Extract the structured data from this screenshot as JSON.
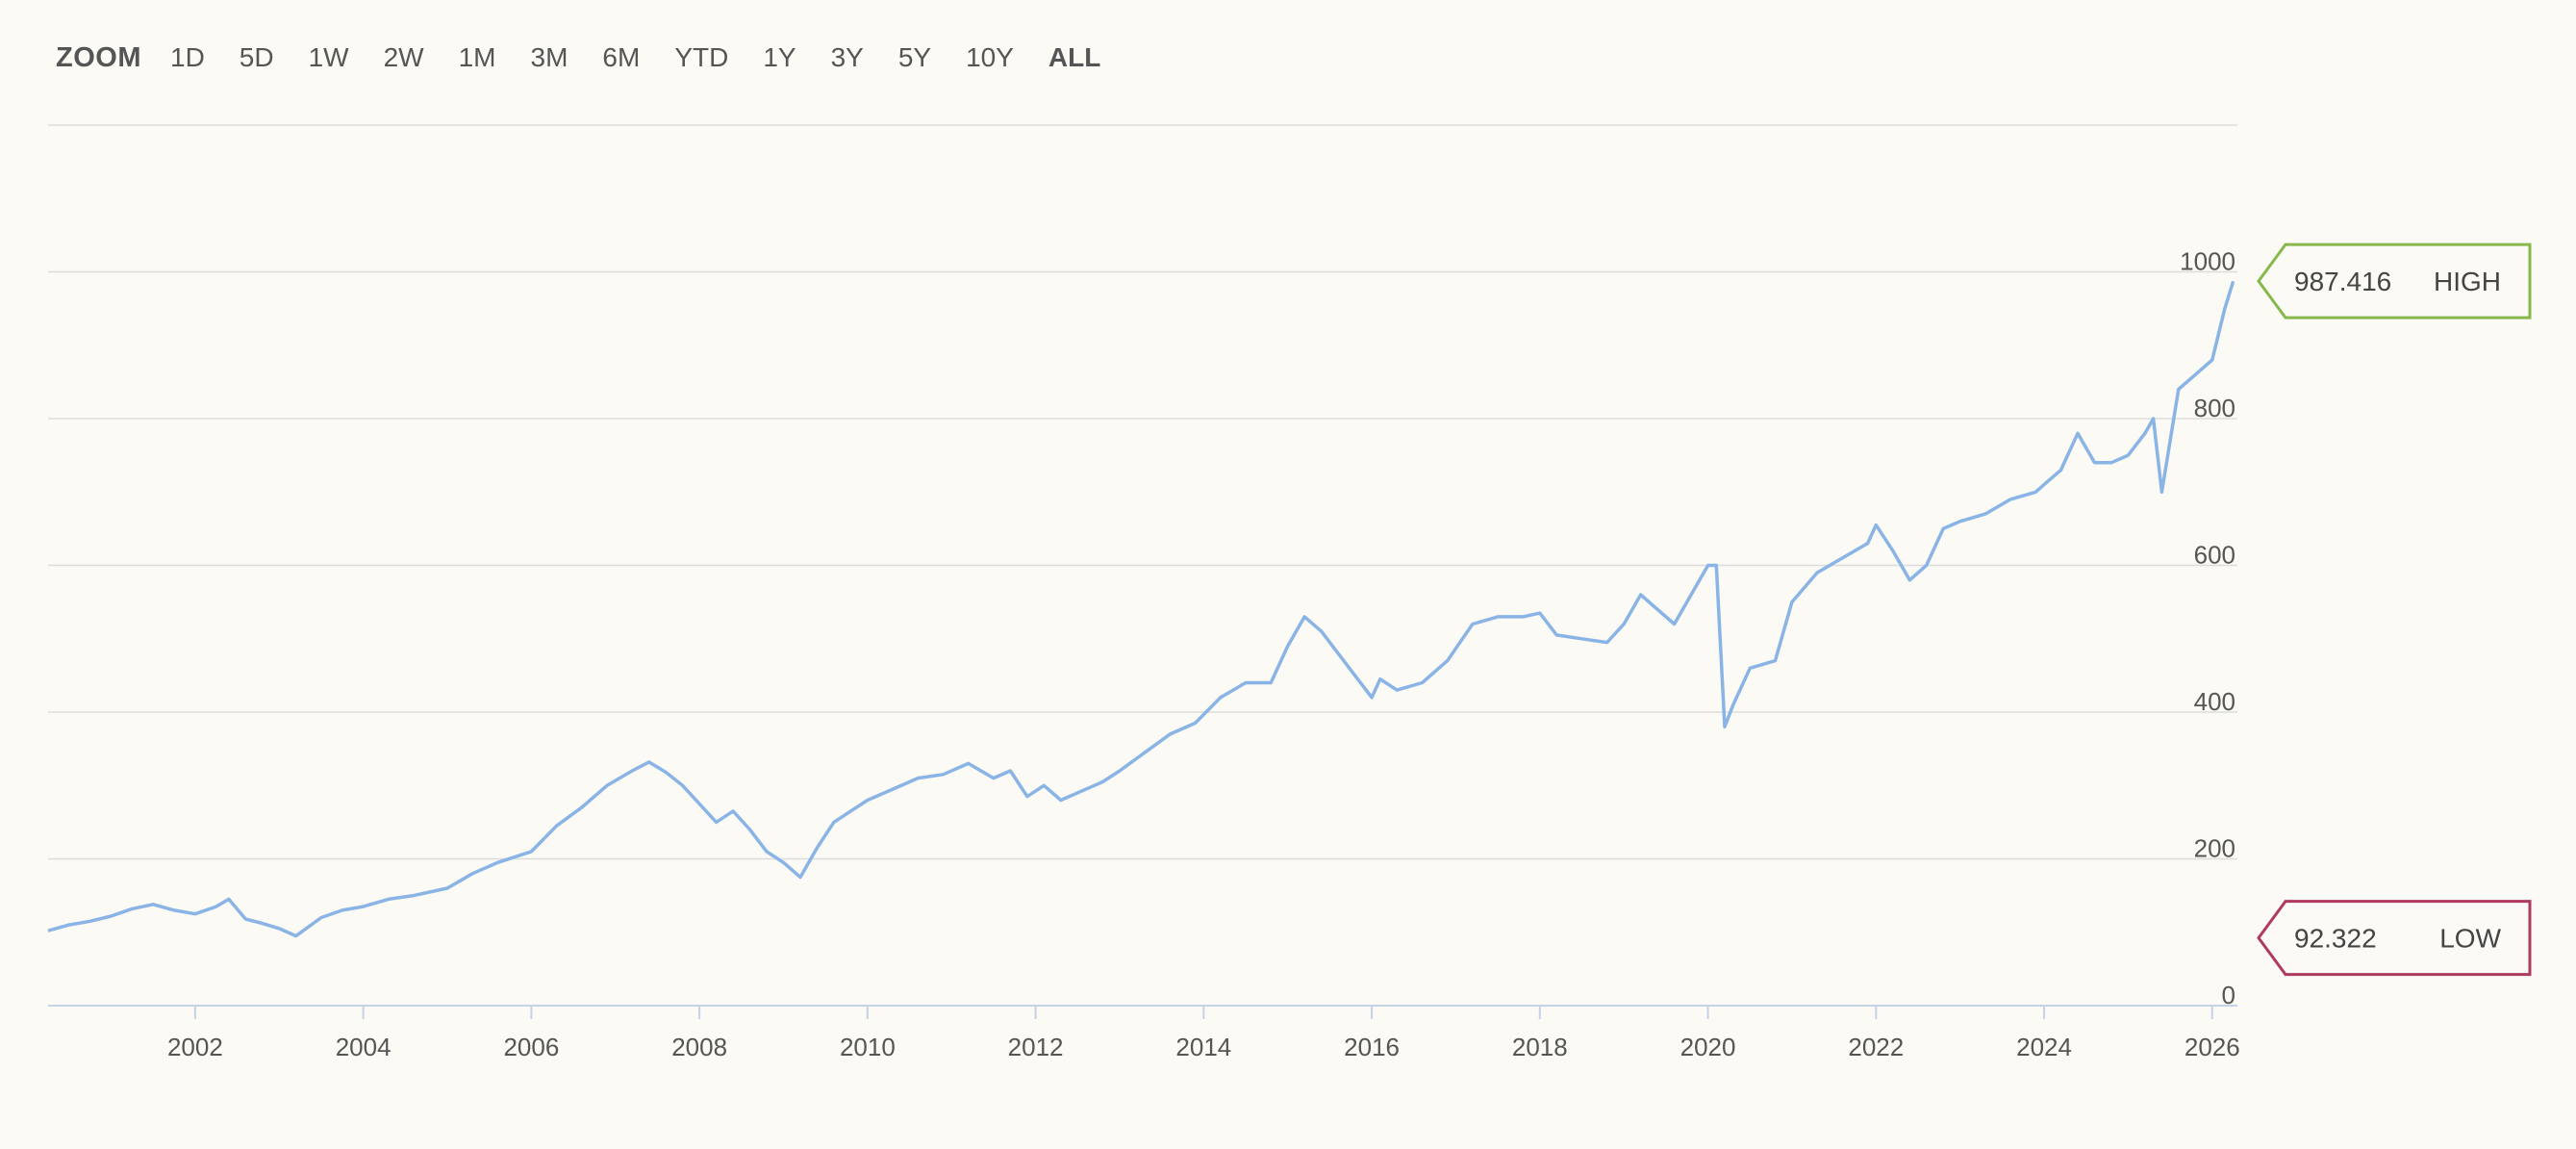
{
  "zoom": {
    "label": "ZOOM",
    "ranges": [
      "1D",
      "5D",
      "1W",
      "2W",
      "1M",
      "3M",
      "6M",
      "YTD",
      "1Y",
      "3Y",
      "5Y",
      "10Y",
      "ALL"
    ],
    "selected": "ALL"
  },
  "colors": {
    "line": "#8ab4e6",
    "high": "#86b84b",
    "low": "#b03a5e",
    "grid": "#dcdcdc",
    "axis": "#c5d3e8",
    "background": "#fbfaf4"
  },
  "badges": {
    "high": {
      "value": "987.416",
      "label": "HIGH"
    },
    "low": {
      "value": "92.322",
      "label": "LOW"
    }
  },
  "chart_data": {
    "type": "line",
    "title": "",
    "xlabel": "",
    "ylabel": "",
    "xlim": [
      2000.25,
      2026.3
    ],
    "ylim": [
      0,
      1200
    ],
    "y_ticks": [
      0,
      200,
      400,
      600,
      800,
      1000
    ],
    "x_ticks": [
      "2002",
      "2004",
      "2006",
      "2008",
      "2010",
      "2012",
      "2014",
      "2016",
      "2018",
      "2020",
      "2022",
      "2024",
      "2026"
    ],
    "grid": true,
    "series": [
      {
        "x": [
          2000.25,
          2000.5,
          2000.75,
          2001.0,
          2001.25,
          2001.5,
          2001.75,
          2002.0,
          2002.25,
          2002.4,
          2002.6,
          2002.8,
          2003.0,
          2003.2,
          2003.5,
          2003.75,
          2004.0,
          2004.3,
          2004.6,
          2005.0,
          2005.3,
          2005.6,
          2006.0,
          2006.3,
          2006.6,
          2006.9,
          2007.2,
          2007.4,
          2007.6,
          2007.8,
          2008.0,
          2008.2,
          2008.4,
          2008.6,
          2008.8,
          2009.0,
          2009.2,
          2009.4,
          2009.6,
          2009.8,
          2010.0,
          2010.3,
          2010.6,
          2010.9,
          2011.2,
          2011.5,
          2011.7,
          2011.9,
          2012.1,
          2012.3,
          2012.5,
          2012.8,
          2013.0,
          2013.3,
          2013.6,
          2013.9,
          2014.2,
          2014.5,
          2014.8,
          2015.0,
          2015.2,
          2015.4,
          2015.6,
          2015.8,
          2016.0,
          2016.1,
          2016.3,
          2016.6,
          2016.9,
          2017.2,
          2017.5,
          2017.8,
          2018.0,
          2018.2,
          2018.5,
          2018.8,
          2019.0,
          2019.2,
          2019.4,
          2019.6,
          2019.8,
          2020.0,
          2020.1,
          2020.2,
          2020.3,
          2020.5,
          2020.8,
          2021.0,
          2021.3,
          2021.6,
          2021.9,
          2022.0,
          2022.2,
          2022.4,
          2022.6,
          2022.8,
          2023.0,
          2023.3,
          2023.6,
          2023.9,
          2024.0,
          2024.2,
          2024.4,
          2024.6,
          2024.8,
          2025.0,
          2025.2,
          2025.3,
          2025.4,
          2025.6,
          2025.8,
          2026.0,
          2026.15,
          2026.25
        ],
        "values": [
          102,
          110,
          115,
          122,
          132,
          138,
          130,
          125,
          135,
          145,
          118,
          112,
          105,
          95,
          120,
          130,
          135,
          145,
          150,
          160,
          180,
          195,
          210,
          245,
          270,
          300,
          320,
          332,
          318,
          300,
          275,
          250,
          265,
          240,
          210,
          195,
          175,
          215,
          250,
          265,
          280,
          295,
          310,
          315,
          330,
          310,
          320,
          285,
          300,
          280,
          290,
          305,
          320,
          345,
          370,
          385,
          420,
          440,
          440,
          490,
          530,
          510,
          480,
          450,
          420,
          445,
          430,
          440,
          470,
          520,
          530,
          530,
          535,
          505,
          500,
          495,
          520,
          560,
          540,
          520,
          560,
          600,
          600,
          380,
          410,
          460,
          470,
          550,
          590,
          610,
          630,
          655,
          620,
          580,
          600,
          650,
          660,
          670,
          690,
          700,
          710,
          730,
          780,
          740,
          740,
          750,
          780,
          800,
          700,
          840,
          860,
          880,
          950,
          987
        ]
      }
    ]
  }
}
